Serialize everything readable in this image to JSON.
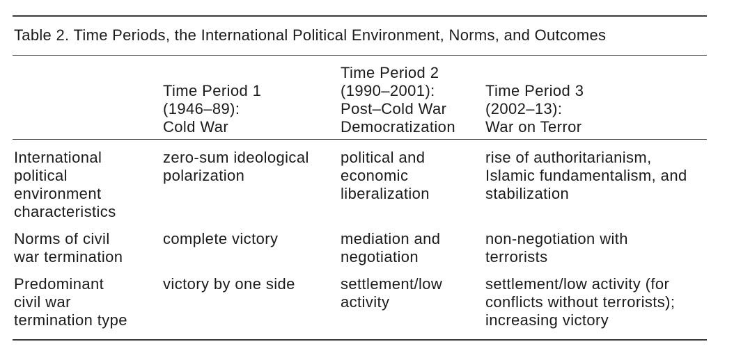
{
  "table": {
    "caption": "Table 2. Time Periods, the International Political Environment, Norms, and Outcomes",
    "headers": [
      "",
      "Time Period 1\n(1946–89):\nCold War",
      "Time Period 2\n(1990–2001):\nPost–Cold War\nDemocratization",
      "Time Period 3\n(2002–13):\nWar on Terror"
    ],
    "rows": [
      [
        "International\npolitical\nenvironment\ncharacteristics",
        "zero-sum ideological\npolarization",
        "political and\neconomic\nliberalization",
        "rise of authoritarianism,\nIslamic fundamentalism, and\nstabilization"
      ],
      [
        "Norms of civil\nwar termination",
        "complete victory",
        "mediation and\nnegotiation",
        "non-negotiation with\nterrorists"
      ],
      [
        "Predominant\ncivil war\ntermination type",
        "victory by one side",
        "settlement/low\nactivity",
        "settlement/low activity (for\nconflicts without terrorists);\nincreasing victory"
      ]
    ]
  }
}
